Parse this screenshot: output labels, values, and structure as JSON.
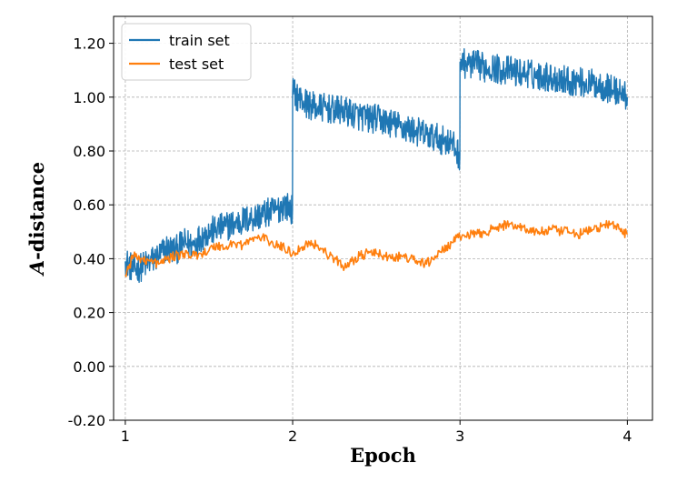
{
  "chart_data": {
    "type": "line",
    "xlabel": "Epoch",
    "ylabel": "-distance",
    "ylabel_symbol": "A",
    "xlim": [
      0.93,
      4.15
    ],
    "ylim": [
      -0.2,
      1.3
    ],
    "x_ticks": [
      "1",
      "2",
      "3",
      "4"
    ],
    "x_tick_values": [
      1,
      2,
      3,
      4
    ],
    "y_ticks": [
      "-0.20",
      "0.00",
      "0.20",
      "0.40",
      "0.60",
      "0.80",
      "1.00",
      "1.20"
    ],
    "y_tick_values": [
      -0.2,
      0.0,
      0.2,
      0.4,
      0.6,
      0.8,
      1.0,
      1.2
    ],
    "grid": true,
    "legend_position": "upper-left",
    "series": [
      {
        "name": "train set",
        "color": "#1f77b4",
        "x": [
          1.0,
          1.05,
          1.1,
          1.15,
          1.2,
          1.25,
          1.3,
          1.35,
          1.4,
          1.45,
          1.5,
          1.55,
          1.6,
          1.65,
          1.7,
          1.75,
          1.8,
          1.85,
          1.9,
          1.95,
          1.999,
          2.0,
          2.05,
          2.1,
          2.15,
          2.2,
          2.25,
          2.3,
          2.35,
          2.4,
          2.45,
          2.5,
          2.55,
          2.6,
          2.65,
          2.7,
          2.75,
          2.8,
          2.85,
          2.9,
          2.95,
          2.999,
          3.0,
          3.05,
          3.1,
          3.15,
          3.2,
          3.25,
          3.3,
          3.35,
          3.4,
          3.45,
          3.5,
          3.55,
          3.6,
          3.65,
          3.7,
          3.75,
          3.8,
          3.85,
          3.9,
          3.95,
          4.0
        ],
        "y": [
          0.39,
          0.36,
          0.37,
          0.39,
          0.41,
          0.44,
          0.43,
          0.46,
          0.45,
          0.48,
          0.5,
          0.51,
          0.52,
          0.53,
          0.54,
          0.55,
          0.56,
          0.57,
          0.58,
          0.6,
          0.58,
          1.02,
          0.99,
          0.97,
          0.96,
          0.96,
          0.95,
          0.95,
          0.94,
          0.93,
          0.92,
          0.92,
          0.91,
          0.9,
          0.89,
          0.88,
          0.87,
          0.86,
          0.85,
          0.84,
          0.83,
          0.78,
          1.13,
          1.12,
          1.12,
          1.11,
          1.11,
          1.1,
          1.1,
          1.09,
          1.09,
          1.08,
          1.08,
          1.07,
          1.07,
          1.06,
          1.06,
          1.05,
          1.05,
          1.04,
          1.03,
          1.02,
          1.0
        ]
      },
      {
        "name": "test set",
        "color": "#ff7f0e",
        "x": [
          1.0,
          1.05,
          1.1,
          1.15,
          1.2,
          1.25,
          1.3,
          1.35,
          1.4,
          1.45,
          1.5,
          1.55,
          1.6,
          1.65,
          1.7,
          1.75,
          1.8,
          1.85,
          1.9,
          1.95,
          2.0,
          2.05,
          2.1,
          2.15,
          2.2,
          2.25,
          2.3,
          2.35,
          2.4,
          2.45,
          2.5,
          2.55,
          2.6,
          2.65,
          2.7,
          2.75,
          2.8,
          2.85,
          2.9,
          2.95,
          3.0,
          3.05,
          3.1,
          3.15,
          3.2,
          3.25,
          3.3,
          3.35,
          3.4,
          3.45,
          3.5,
          3.55,
          3.6,
          3.65,
          3.7,
          3.75,
          3.8,
          3.85,
          3.9,
          3.95,
          4.0
        ],
        "y": [
          0.34,
          0.41,
          0.4,
          0.39,
          0.38,
          0.4,
          0.41,
          0.42,
          0.41,
          0.42,
          0.43,
          0.45,
          0.44,
          0.46,
          0.45,
          0.47,
          0.48,
          0.47,
          0.45,
          0.44,
          0.42,
          0.44,
          0.46,
          0.45,
          0.42,
          0.4,
          0.37,
          0.39,
          0.41,
          0.42,
          0.42,
          0.41,
          0.4,
          0.41,
          0.4,
          0.39,
          0.38,
          0.41,
          0.43,
          0.46,
          0.48,
          0.49,
          0.49,
          0.5,
          0.51,
          0.52,
          0.53,
          0.52,
          0.51,
          0.5,
          0.5,
          0.51,
          0.5,
          0.5,
          0.49,
          0.5,
          0.51,
          0.52,
          0.53,
          0.51,
          0.49
        ]
      }
    ]
  }
}
